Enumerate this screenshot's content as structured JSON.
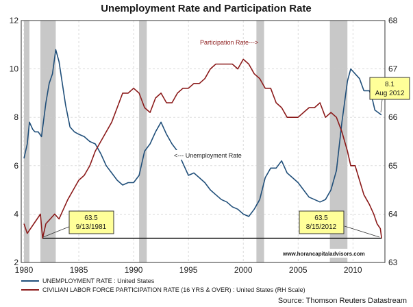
{
  "chart_data": {
    "type": "line",
    "title": "Unemployment Rate and Participation Rate",
    "x": [
      1980,
      1985,
      1990,
      1995,
      2000,
      2005,
      2010
    ],
    "xlim": [
      1979.75,
      2012.92
    ],
    "ylim_left": [
      2,
      12
    ],
    "yticks_left": [
      2,
      4,
      6,
      8,
      10,
      12
    ],
    "ylim_right": [
      63,
      68
    ],
    "yticks_right": [
      63,
      64,
      65,
      66,
      67,
      68
    ],
    "grid": true,
    "recessions": [
      [
        1980.0,
        1980.5
      ],
      [
        1981.5,
        1982.9
      ],
      [
        1990.5,
        1991.2
      ],
      [
        2001.2,
        2001.9
      ],
      [
        2007.9,
        2009.5
      ]
    ],
    "series": [
      {
        "name": "UNEMPLOYMENT RATE : United States",
        "axis": "left",
        "color": "#1f4e79",
        "points": [
          [
            1980.0,
            6.3
          ],
          [
            1980.3,
            6.9
          ],
          [
            1980.5,
            7.8
          ],
          [
            1980.8,
            7.5
          ],
          [
            1981.0,
            7.4
          ],
          [
            1981.3,
            7.4
          ],
          [
            1981.6,
            7.2
          ],
          [
            1981.8,
            7.9
          ],
          [
            1982.0,
            8.6
          ],
          [
            1982.3,
            9.4
          ],
          [
            1982.6,
            9.8
          ],
          [
            1982.9,
            10.8
          ],
          [
            1983.2,
            10.3
          ],
          [
            1983.5,
            9.4
          ],
          [
            1983.8,
            8.5
          ],
          [
            1984.2,
            7.6
          ],
          [
            1984.6,
            7.4
          ],
          [
            1985.0,
            7.3
          ],
          [
            1985.5,
            7.2
          ],
          [
            1986.0,
            7.0
          ],
          [
            1986.5,
            6.9
          ],
          [
            1987.0,
            6.5
          ],
          [
            1987.5,
            6.0
          ],
          [
            1988.0,
            5.7
          ],
          [
            1988.5,
            5.4
          ],
          [
            1989.0,
            5.2
          ],
          [
            1989.5,
            5.3
          ],
          [
            1990.0,
            5.3
          ],
          [
            1990.5,
            5.6
          ],
          [
            1991.0,
            6.6
          ],
          [
            1991.5,
            6.9
          ],
          [
            1992.0,
            7.4
          ],
          [
            1992.5,
            7.8
          ],
          [
            1993.0,
            7.3
          ],
          [
            1993.5,
            6.9
          ],
          [
            1994.0,
            6.6
          ],
          [
            1994.5,
            6.1
          ],
          [
            1995.0,
            5.6
          ],
          [
            1995.5,
            5.7
          ],
          [
            1996.0,
            5.5
          ],
          [
            1996.5,
            5.3
          ],
          [
            1997.0,
            5.0
          ],
          [
            1997.5,
            4.8
          ],
          [
            1998.0,
            4.6
          ],
          [
            1998.5,
            4.5
          ],
          [
            1999.0,
            4.3
          ],
          [
            1999.5,
            4.2
          ],
          [
            2000.0,
            4.0
          ],
          [
            2000.5,
            3.9
          ],
          [
            2001.0,
            4.2
          ],
          [
            2001.5,
            4.6
          ],
          [
            2002.0,
            5.5
          ],
          [
            2002.5,
            5.9
          ],
          [
            2003.0,
            5.9
          ],
          [
            2003.5,
            6.2
          ],
          [
            2004.0,
            5.7
          ],
          [
            2004.5,
            5.5
          ],
          [
            2005.0,
            5.3
          ],
          [
            2005.5,
            5.0
          ],
          [
            2006.0,
            4.7
          ],
          [
            2006.5,
            4.6
          ],
          [
            2007.0,
            4.5
          ],
          [
            2007.5,
            4.6
          ],
          [
            2008.0,
            5.0
          ],
          [
            2008.5,
            5.8
          ],
          [
            2009.0,
            7.8
          ],
          [
            2009.5,
            9.5
          ],
          [
            2009.8,
            10.0
          ],
          [
            2010.2,
            9.8
          ],
          [
            2010.6,
            9.6
          ],
          [
            2011.0,
            9.1
          ],
          [
            2011.5,
            9.1
          ],
          [
            2011.8,
            8.7
          ],
          [
            2012.0,
            8.3
          ],
          [
            2012.3,
            8.2
          ],
          [
            2012.6,
            8.1
          ]
        ]
      },
      {
        "name": "CIVILIAN LABOR FORCE PARTICIPATION RATE (16 YRS & OVER) : United States (RH Scale)",
        "axis": "right",
        "color": "#8b1a1a",
        "points": [
          [
            1980.0,
            63.8
          ],
          [
            1980.3,
            63.6
          ],
          [
            1980.6,
            63.7
          ],
          [
            1980.9,
            63.8
          ],
          [
            1981.2,
            63.9
          ],
          [
            1981.5,
            64.0
          ],
          [
            1981.7,
            63.5
          ],
          [
            1982.0,
            63.8
          ],
          [
            1982.4,
            63.9
          ],
          [
            1982.8,
            64.0
          ],
          [
            1983.2,
            63.9
          ],
          [
            1983.6,
            64.1
          ],
          [
            1984.0,
            64.3
          ],
          [
            1984.5,
            64.5
          ],
          [
            1985.0,
            64.7
          ],
          [
            1985.5,
            64.8
          ],
          [
            1986.0,
            65.0
          ],
          [
            1986.5,
            65.3
          ],
          [
            1987.0,
            65.5
          ],
          [
            1987.5,
            65.7
          ],
          [
            1988.0,
            65.9
          ],
          [
            1988.5,
            66.2
          ],
          [
            1989.0,
            66.5
          ],
          [
            1989.5,
            66.5
          ],
          [
            1990.0,
            66.6
          ],
          [
            1990.5,
            66.5
          ],
          [
            1991.0,
            66.2
          ],
          [
            1991.5,
            66.1
          ],
          [
            1992.0,
            66.4
          ],
          [
            1992.5,
            66.5
          ],
          [
            1993.0,
            66.3
          ],
          [
            1993.5,
            66.3
          ],
          [
            1994.0,
            66.5
          ],
          [
            1994.5,
            66.6
          ],
          [
            1995.0,
            66.6
          ],
          [
            1995.5,
            66.7
          ],
          [
            1996.0,
            66.7
          ],
          [
            1996.5,
            66.8
          ],
          [
            1997.0,
            67.0
          ],
          [
            1997.5,
            67.1
          ],
          [
            1998.0,
            67.1
          ],
          [
            1998.5,
            67.1
          ],
          [
            1999.0,
            67.1
          ],
          [
            1999.5,
            67.0
          ],
          [
            2000.0,
            67.2
          ],
          [
            2000.5,
            67.1
          ],
          [
            2001.0,
            66.9
          ],
          [
            2001.5,
            66.8
          ],
          [
            2002.0,
            66.6
          ],
          [
            2002.5,
            66.6
          ],
          [
            2003.0,
            66.3
          ],
          [
            2003.5,
            66.2
          ],
          [
            2004.0,
            66.0
          ],
          [
            2004.5,
            66.0
          ],
          [
            2005.0,
            66.0
          ],
          [
            2005.5,
            66.1
          ],
          [
            2006.0,
            66.2
          ],
          [
            2006.5,
            66.2
          ],
          [
            2007.0,
            66.3
          ],
          [
            2007.5,
            66.0
          ],
          [
            2008.0,
            66.1
          ],
          [
            2008.5,
            66.0
          ],
          [
            2009.0,
            65.7
          ],
          [
            2009.5,
            65.3
          ],
          [
            2009.8,
            65.0
          ],
          [
            2010.2,
            65.0
          ],
          [
            2010.6,
            64.7
          ],
          [
            2011.0,
            64.4
          ],
          [
            2011.5,
            64.2
          ],
          [
            2011.9,
            64.0
          ],
          [
            2012.2,
            63.8
          ],
          [
            2012.5,
            63.7
          ],
          [
            2012.62,
            63.5
          ]
        ]
      }
    ],
    "reference_line": {
      "y_right": 63.5,
      "x_from": 1981.7,
      "x_to": 2012.62
    },
    "text_annotations": {
      "participation": "Participation Rate--->",
      "unemployment": "<--- Unemployment Rate",
      "website": "www.horancapitaladvisors.com"
    },
    "callouts": [
      {
        "line1": "63.5",
        "line2": "9/13/1981"
      },
      {
        "line1": "63.5",
        "line2": "8/15/2012"
      },
      {
        "line1": "8.1",
        "line2": "Aug 2012"
      }
    ],
    "source": "Source: Thomson Reuters Datastream"
  }
}
